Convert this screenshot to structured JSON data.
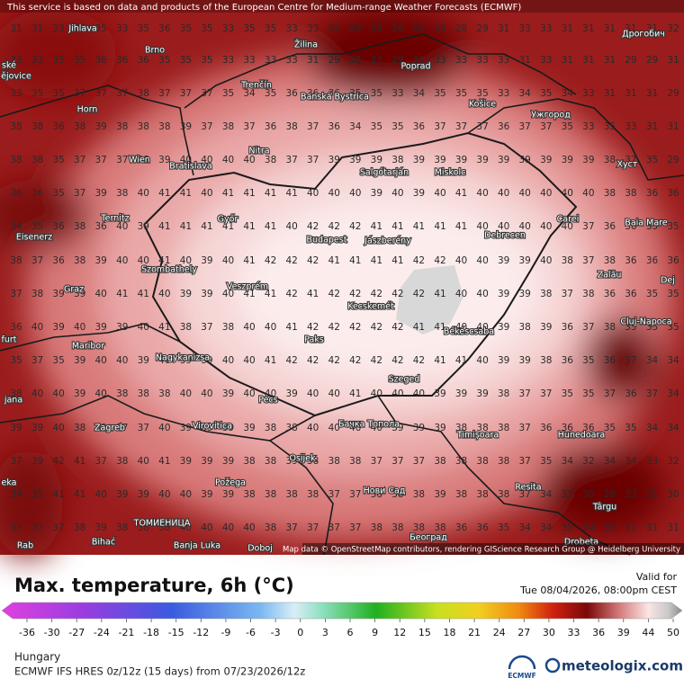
{
  "header": {
    "notice": "This service is based on data and products of the European Centre for Medium-range Weather Forecasts (ECMWF)"
  },
  "map": {
    "grid": [
      [
        31,
        31,
        33,
        33,
        35,
        33,
        35,
        36,
        35,
        35,
        33,
        35,
        35,
        33,
        33,
        31,
        29,
        28,
        28,
        28,
        28,
        28,
        29,
        31,
        33,
        33,
        31,
        31,
        31,
        31,
        31,
        32
      ],
      [
        33,
        33,
        35,
        35,
        36,
        36,
        36,
        35,
        35,
        35,
        33,
        33,
        33,
        33,
        31,
        29,
        28,
        27,
        29,
        31,
        33,
        33,
        33,
        33,
        31,
        33,
        31,
        31,
        31,
        29,
        29,
        31
      ],
      [
        33,
        35,
        35,
        37,
        37,
        37,
        38,
        37,
        37,
        37,
        35,
        34,
        35,
        36,
        36,
        36,
        35,
        35,
        33,
        34,
        35,
        35,
        35,
        33,
        34,
        35,
        34,
        33,
        31,
        31,
        31,
        29
      ],
      [
        38,
        38,
        36,
        38,
        39,
        38,
        38,
        38,
        39,
        37,
        38,
        37,
        36,
        38,
        37,
        36,
        34,
        35,
        35,
        36,
        37,
        37,
        37,
        36,
        37,
        37,
        35,
        33,
        35,
        33,
        31,
        31
      ],
      [
        38,
        38,
        35,
        37,
        37,
        37,
        38,
        39,
        40,
        40,
        40,
        40,
        38,
        37,
        37,
        39,
        39,
        39,
        38,
        39,
        39,
        39,
        39,
        39,
        39,
        39,
        39,
        39,
        38,
        37,
        35,
        29
      ],
      [
        36,
        36,
        35,
        37,
        39,
        38,
        40,
        41,
        41,
        40,
        41,
        41,
        41,
        41,
        40,
        40,
        40,
        39,
        40,
        39,
        40,
        41,
        40,
        40,
        40,
        40,
        40,
        40,
        38,
        38,
        36,
        36
      ],
      [
        34,
        35,
        36,
        38,
        36,
        40,
        39,
        41,
        41,
        41,
        41,
        41,
        41,
        40,
        42,
        42,
        42,
        41,
        41,
        41,
        41,
        41,
        40,
        40,
        40,
        40,
        40,
        37,
        36,
        36,
        35,
        35
      ],
      [
        38,
        37,
        36,
        38,
        39,
        40,
        40,
        41,
        40,
        39,
        40,
        41,
        42,
        42,
        42,
        41,
        41,
        41,
        41,
        42,
        42,
        40,
        40,
        39,
        39,
        40,
        38,
        37,
        38,
        36,
        36,
        36
      ],
      [
        37,
        38,
        39,
        39,
        40,
        41,
        41,
        40,
        39,
        39,
        40,
        41,
        41,
        42,
        41,
        42,
        42,
        42,
        42,
        42,
        41,
        40,
        40,
        39,
        39,
        38,
        37,
        38,
        36,
        36,
        35,
        35
      ],
      [
        36,
        40,
        39,
        40,
        39,
        39,
        40,
        41,
        38,
        37,
        38,
        40,
        40,
        41,
        42,
        42,
        42,
        42,
        42,
        41,
        41,
        40,
        40,
        39,
        38,
        39,
        36,
        37,
        38,
        35,
        35,
        35
      ],
      [
        35,
        37,
        35,
        39,
        40,
        40,
        39,
        40,
        39,
        39,
        40,
        40,
        41,
        42,
        42,
        42,
        42,
        42,
        42,
        42,
        41,
        41,
        40,
        39,
        39,
        38,
        36,
        35,
        36,
        37,
        34,
        34
      ],
      [
        38,
        40,
        40,
        39,
        40,
        38,
        38,
        38,
        40,
        40,
        39,
        40,
        40,
        39,
        40,
        40,
        41,
        40,
        40,
        40,
        39,
        39,
        39,
        38,
        37,
        37,
        35,
        35,
        37,
        36,
        37,
        34
      ],
      [
        39,
        39,
        40,
        38,
        39,
        37,
        37,
        40,
        39,
        39,
        39,
        39,
        38,
        38,
        40,
        40,
        40,
        40,
        39,
        39,
        39,
        38,
        38,
        38,
        37,
        36,
        36,
        36,
        35,
        35,
        34,
        34
      ],
      [
        37,
        39,
        42,
        41,
        37,
        38,
        40,
        41,
        39,
        39,
        39,
        38,
        38,
        39,
        38,
        38,
        38,
        37,
        37,
        37,
        38,
        38,
        38,
        38,
        37,
        35,
        34,
        32,
        34,
        34,
        33,
        32
      ],
      [
        34,
        35,
        41,
        41,
        40,
        39,
        39,
        40,
        40,
        39,
        39,
        38,
        38,
        38,
        38,
        37,
        37,
        38,
        38,
        38,
        39,
        38,
        38,
        38,
        37,
        34,
        33,
        30,
        28,
        33,
        31,
        30
      ],
      [
        37,
        37,
        37,
        38,
        39,
        38,
        38,
        38,
        40,
        40,
        40,
        40,
        38,
        37,
        37,
        37,
        37,
        38,
        38,
        38,
        38,
        36,
        36,
        35,
        34,
        34,
        35,
        34,
        35,
        31,
        31,
        31
      ]
    ],
    "cities": [
      "Jihlava",
      "Žilina",
      "Дрогобич",
      "ské",
      "Brno",
      "ějovice",
      "Poprad",
      "Trenčín",
      "Banská Bystrica",
      "Košice",
      "Horn",
      "Ужгород",
      "Wien",
      "Bratislava",
      "Nitra",
      "Salgótarján",
      "Miskolc",
      "Хуст",
      "Ternitz",
      "Győr",
      "Budapest",
      "Jászberény",
      "Debrecen",
      "Carei",
      "Baia Mare",
      "Eisenerz",
      "Szombathely",
      "Zalău",
      "Graz",
      "Veszprém",
      "Kecskemét",
      "Dej",
      "Cluj-Napoca",
      "furt",
      "Maribor",
      "Paks",
      "Békéscsaba",
      "Nagykanizsa",
      "Szeged",
      "Pécs",
      "jana",
      "Zagreb",
      "Virovitica",
      "Бачка Топола",
      "Timișoara",
      "Hunedoara",
      "Osijek",
      "eka",
      "Požega",
      "Resita",
      "Нови Сад",
      "Târgu",
      "Bihać",
      "ТОМИЕНИЦА",
      "Banja Luka",
      "Doboj",
      "Београд",
      "Drobeta",
      "Rab"
    ],
    "attribution": "Map data © OpenStreetMap contributors, rendering GIScience Research Group @ Heidelberg University"
  },
  "legend": {
    "title": "Max. temperature, 6h (°C)",
    "valid_label": "Valid for",
    "valid_time": "Tue 08/04/2026, 08:00pm CEST",
    "ticks": [
      -36,
      -30,
      -27,
      -24,
      -21,
      -18,
      -15,
      -12,
      -9,
      -6,
      -3,
      0,
      3,
      6,
      9,
      12,
      15,
      18,
      21,
      24,
      27,
      30,
      33,
      36,
      39,
      44,
      50
    ]
  },
  "footer": {
    "region": "Hungary",
    "model": "ECMWF IFS HRES 0z/12z (15 days) from 07/23/2026/12z",
    "ecmwf": "ECMWF",
    "brand": "meteologix.com"
  }
}
